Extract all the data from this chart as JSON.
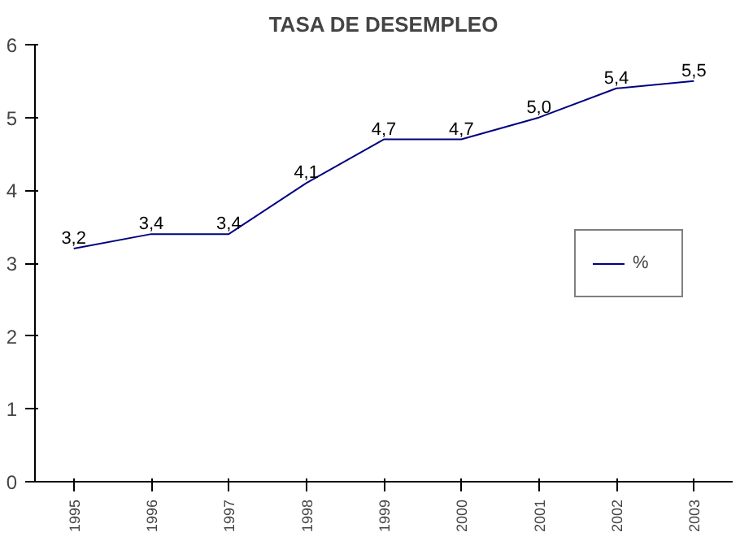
{
  "chart_data": {
    "type": "line",
    "title": "TASA DE DESEMPLEO",
    "categories": [
      "1995",
      "1996",
      "1997",
      "1998",
      "1999",
      "2000",
      "2001",
      "2002",
      "2003"
    ],
    "series": [
      {
        "name": "%",
        "color": "#000080",
        "values": [
          3.2,
          3.4,
          3.4,
          4.1,
          4.7,
          4.7,
          5.0,
          5.4,
          5.5
        ],
        "value_labels": [
          "3,2",
          "3,4",
          "3,4",
          "4,1",
          "4,7",
          "4,7",
          "5,0",
          "5,4",
          "5,5"
        ]
      }
    ],
    "ylim": [
      0,
      6
    ],
    "yticks": [
      0,
      1,
      2,
      3,
      4,
      5,
      6
    ],
    "grid": false,
    "legend": "right",
    "marker": "none",
    "line_style": "solid"
  }
}
